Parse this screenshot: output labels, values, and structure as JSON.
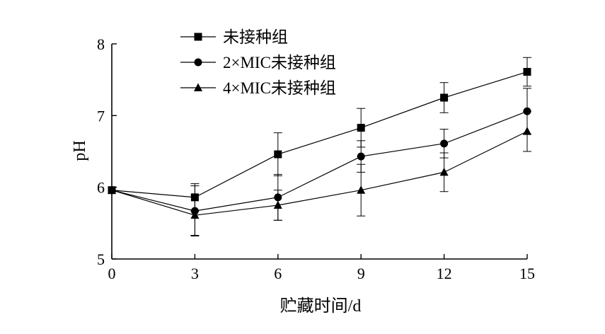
{
  "chart_data": {
    "type": "line",
    "xlabel": "贮藏时间/d",
    "ylabel": "pH",
    "x": [
      0,
      3,
      6,
      9,
      12,
      15
    ],
    "xlim": [
      0,
      15
    ],
    "ylim": [
      5,
      8
    ],
    "x_ticks": [
      "0",
      "3",
      "6",
      "9",
      "12",
      "15"
    ],
    "y_ticks": [
      "5",
      "6",
      "7",
      "8"
    ],
    "grid": false,
    "legend_position": "top-left",
    "series": [
      {
        "name": "未接种组",
        "marker": "square",
        "values": [
          5.96,
          5.86,
          6.46,
          6.83,
          7.25,
          7.61
        ],
        "errors": [
          0.0,
          0.19,
          0.3,
          0.27,
          0.21,
          0.2
        ]
      },
      {
        "name": "2×MIC未接种组",
        "marker": "circle",
        "values": [
          5.96,
          5.67,
          5.86,
          6.43,
          6.61,
          7.06
        ],
        "errors": [
          0.0,
          0.35,
          0.32,
          0.22,
          0.2,
          0.32
        ]
      },
      {
        "name": "4×MIC未接种组",
        "marker": "triangle",
        "values": [
          5.96,
          5.61,
          5.75,
          5.96,
          6.21,
          6.78
        ],
        "errors": [
          0.0,
          0.28,
          0.21,
          0.36,
          0.27,
          0.28
        ]
      }
    ],
    "colors": {
      "line": "#000000",
      "axis": "#000000"
    }
  }
}
